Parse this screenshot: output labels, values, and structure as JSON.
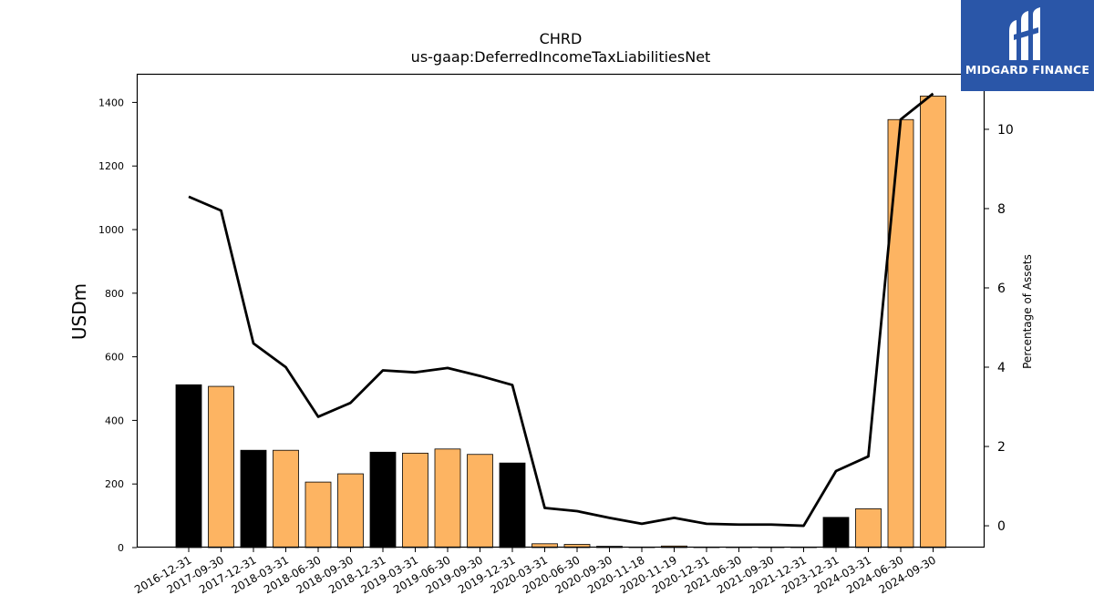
{
  "chart_data": {
    "type": "bar",
    "title": "CHRD",
    "subtitle": "us-gaap:DeferredIncomeTaxLiabilitiesNet",
    "ylabel": "USDm",
    "y2label": "Percentage of Assets",
    "ylim": [
      0,
      1490
    ],
    "y2lim": [
      -0.55,
      11.4
    ],
    "yticks": [
      0,
      200,
      400,
      600,
      800,
      1000,
      1200,
      1400
    ],
    "y2ticks": [
      0,
      2,
      4,
      6,
      8,
      10
    ],
    "categories": [
      "2016-12-31",
      "2017-09-30",
      "2017-12-31",
      "2018-03-31",
      "2018-06-30",
      "2018-09-30",
      "2018-12-31",
      "2019-03-31",
      "2019-06-30",
      "2019-09-30",
      "2019-12-31",
      "2020-03-31",
      "2020-06-30",
      "2020-09-30",
      "2020-11-18",
      "2020-11-19",
      "2020-12-31",
      "2021-06-30",
      "2021-09-30",
      "2021-12-31",
      "2023-12-31",
      "2024-03-31",
      "2024-06-30",
      "2024-09-30"
    ],
    "series": [
      {
        "kind": "bar",
        "values": [
          512,
          507,
          306,
          306,
          206,
          232,
          300,
          297,
          310,
          293,
          266,
          12,
          10,
          4,
          1,
          5,
          1,
          1,
          1,
          1,
          95,
          122,
          1346,
          1420
        ],
        "colors": [
          "#000000",
          "#fdb462",
          "#000000",
          "#fdb462",
          "#fdb462",
          "#fdb462",
          "#000000",
          "#fdb462",
          "#fdb462",
          "#fdb462",
          "#000000",
          "#fdb462",
          "#fdb462",
          "#fdb462",
          "#fdb462",
          "#fdb462",
          "#fdb462",
          "#fdb462",
          "#fdb462",
          "#fdb462",
          "#000000",
          "#fdb462",
          "#fdb462",
          "#fdb462"
        ]
      },
      {
        "kind": "line",
        "axis": "right",
        "color": "#000000",
        "values": [
          8.3,
          7.95,
          4.6,
          4.0,
          2.75,
          3.1,
          3.92,
          3.87,
          3.98,
          3.78,
          3.55,
          0.45,
          0.37,
          0.2,
          0.05,
          0.2,
          0.05,
          0.03,
          0.03,
          0.0,
          1.38,
          1.75,
          10.25,
          10.9
        ]
      }
    ],
    "grid": false,
    "legend": "none"
  },
  "logo": {
    "text": "MIDGARD FINANCE",
    "background": "#2a56a8"
  }
}
